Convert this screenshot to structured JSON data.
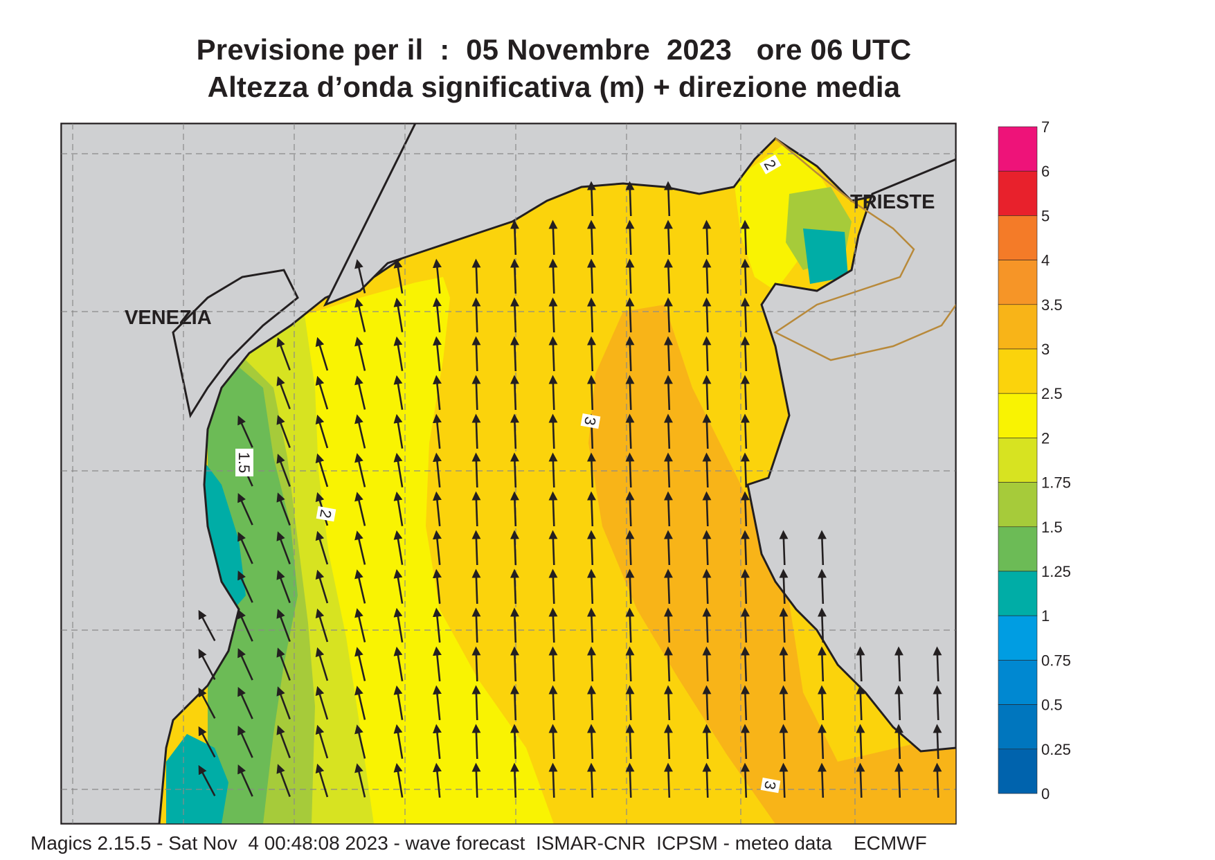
{
  "title": {
    "line1": "Previsione per il  :  05 Novembre  2023   ore 06 UTC",
    "line2": "Altezza d’onda significativa (m) + direzione media"
  },
  "places": {
    "venezia": "VENEZIA",
    "trieste": "TRIESTE"
  },
  "contour_labels": [
    "2",
    "1.5",
    "2",
    "3",
    "3"
  ],
  "legend": {
    "ticks": [
      "7",
      "6",
      "5",
      "4",
      "3.5",
      "3",
      "2.5",
      "2",
      "1.75",
      "1.5",
      "1.25",
      "1",
      "0.75",
      "0.5",
      "0.25",
      "0"
    ],
    "colors_top_to_bottom": [
      "#ee1379",
      "#e8212c",
      "#f47b28",
      "#f69527",
      "#f8b418",
      "#fbd30c",
      "#f9f302",
      "#d7e321",
      "#a6cb3a",
      "#6cbb56",
      "#00ada6",
      "#009de2",
      "#0088d1",
      "#0076be",
      "#0063ad"
    ]
  },
  "colors": {
    "land": "#cfd0d2",
    "coast": "#231f20",
    "border": "#b8893a",
    "arrow": "#231f20"
  },
  "footer": "Magics 2.15.5 - Sat Nov  4 00:48:08 2023 - wave forecast  ISMAR-CNR  ICPSM - meteo data    ECMWF"
}
